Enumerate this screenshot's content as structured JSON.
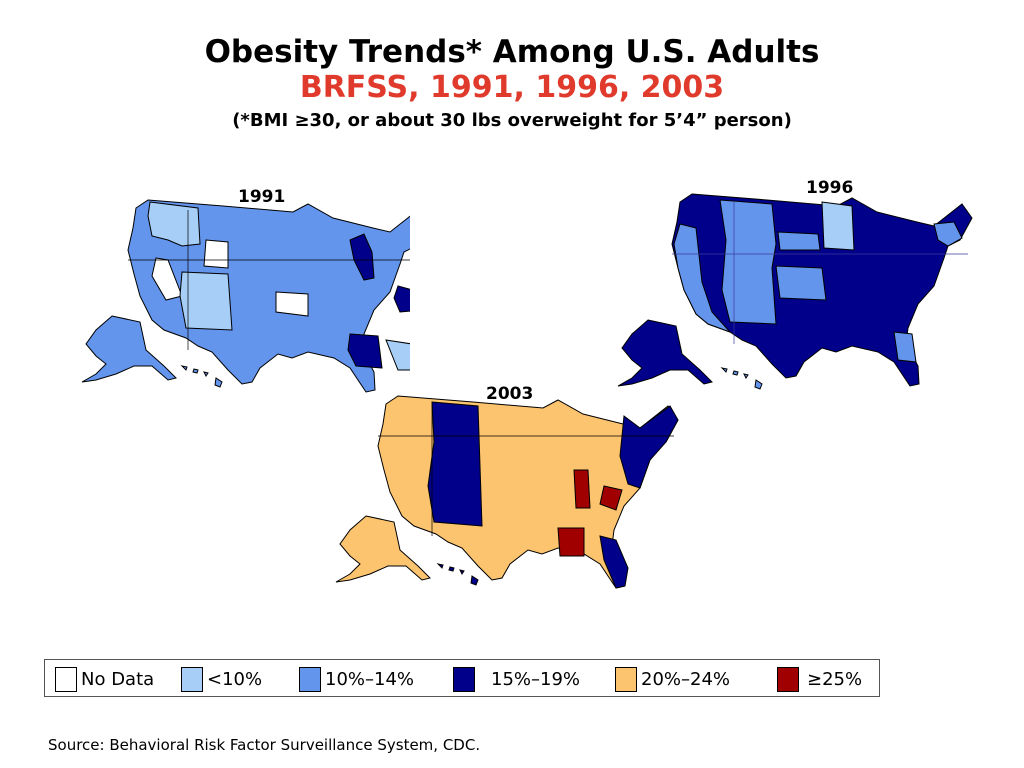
{
  "title": "Obesity Trends* Among U.S. Adults",
  "subtitle": "BRFSS, 1991, 1996, 2003",
  "note": "(*BMI ≥30, or about 30 lbs overweight for 5’4” person)",
  "colors": {
    "no_data": "#ffffff",
    "lt10": "#a6cef7",
    "p10_14": "#6495ed",
    "p15_19": "#00008b",
    "p20_24": "#fcc46f",
    "ge25": "#a00000",
    "border": "#000000"
  },
  "maps": [
    {
      "year": "1991",
      "dominant_category": "10%–14%",
      "highlight_category": "15%–19%"
    },
    {
      "year": "1996",
      "dominant_category": "15%–19%",
      "highlight_category": "10%–14%"
    },
    {
      "year": "2003",
      "dominant_category": "20%–24%",
      "highlight_category": "≥25%"
    }
  ],
  "legend": [
    {
      "label": "No Data",
      "color": "#ffffff"
    },
    {
      "label": "<10%",
      "color": "#a6cef7"
    },
    {
      "label": "10%–14%",
      "color": "#6495ed"
    },
    {
      "label": "15%–19%",
      "color": "#00008b"
    },
    {
      "label": "20%–24%",
      "color": "#fcc46f"
    },
    {
      "label": "≥25%",
      "color": "#a00000"
    }
  ],
  "source": "Source: Behavioral Risk Factor Surveillance System, CDC."
}
